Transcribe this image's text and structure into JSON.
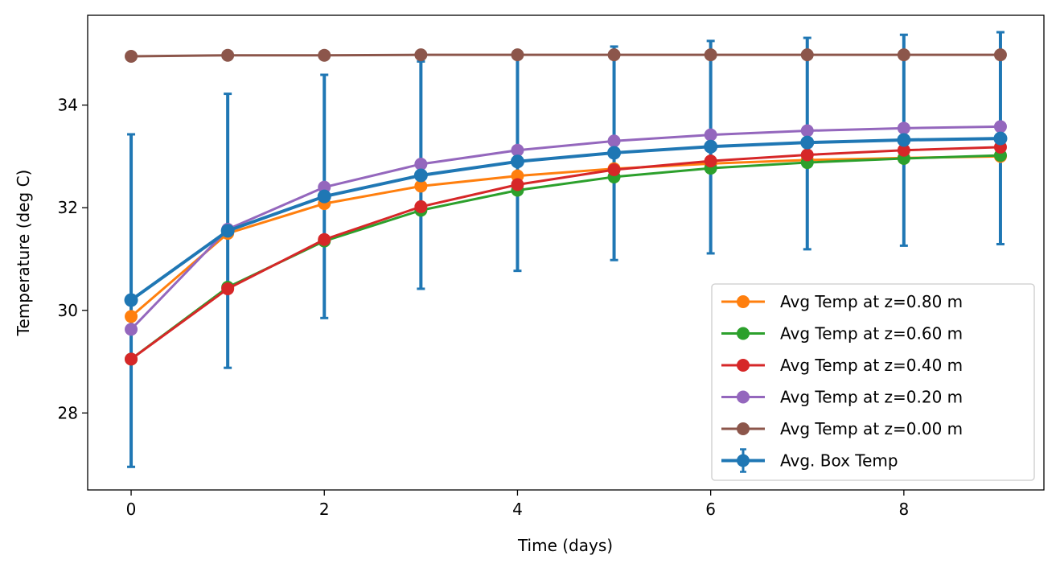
{
  "chart_data": {
    "type": "line",
    "title": "",
    "xlabel": "Time (days)",
    "ylabel": "Temperature (deg C)",
    "xlim": [
      -0.45,
      9.45
    ],
    "ylim": [
      26.5,
      35.75
    ],
    "xticks": [
      0,
      2,
      4,
      6,
      8
    ],
    "yticks": [
      28,
      30,
      32,
      34
    ],
    "grid": false,
    "legend_position": "lower-right",
    "x": [
      0,
      1,
      2,
      3,
      4,
      5,
      6,
      7,
      8,
      9
    ],
    "series": [
      {
        "name": "Avg Temp at z=0.80 m",
        "color": "#ff7f0e",
        "values": [
          29.88,
          31.5,
          32.08,
          32.42,
          32.62,
          32.76,
          32.86,
          32.93,
          32.97,
          33.0
        ]
      },
      {
        "name": "Avg Temp at z=0.60 m",
        "color": "#2ca02c",
        "values": [
          29.05,
          30.45,
          31.35,
          31.95,
          32.34,
          32.6,
          32.77,
          32.88,
          32.96,
          33.02
        ]
      },
      {
        "name": "Avg Temp at z=0.40 m",
        "color": "#d62728",
        "values": [
          29.05,
          30.42,
          31.38,
          32.02,
          32.45,
          32.74,
          32.91,
          33.03,
          33.12,
          33.18
        ]
      },
      {
        "name": "Avg Temp at z=0.20 m",
        "color": "#9467bd",
        "values": [
          29.63,
          31.58,
          32.4,
          32.85,
          33.12,
          33.3,
          33.42,
          33.5,
          33.55,
          33.58
        ]
      },
      {
        "name": "Avg Temp at z=0.00 m",
        "color": "#8c564b",
        "values": [
          34.95,
          34.97,
          34.97,
          34.98,
          34.98,
          34.98,
          34.98,
          34.98,
          34.98,
          34.98
        ]
      }
    ],
    "errorbar_series": {
      "name": "Avg. Box Temp",
      "color": "#1f77b4",
      "values": [
        30.2,
        31.55,
        32.22,
        32.63,
        32.9,
        33.07,
        33.19,
        33.27,
        33.32,
        33.35
      ],
      "lower": [
        26.95,
        28.88,
        29.85,
        30.42,
        30.77,
        30.98,
        31.11,
        31.19,
        31.26,
        31.29
      ],
      "upper": [
        33.43,
        34.22,
        34.59,
        34.85,
        35.04,
        35.14,
        35.25,
        35.31,
        35.37,
        35.42
      ]
    }
  }
}
